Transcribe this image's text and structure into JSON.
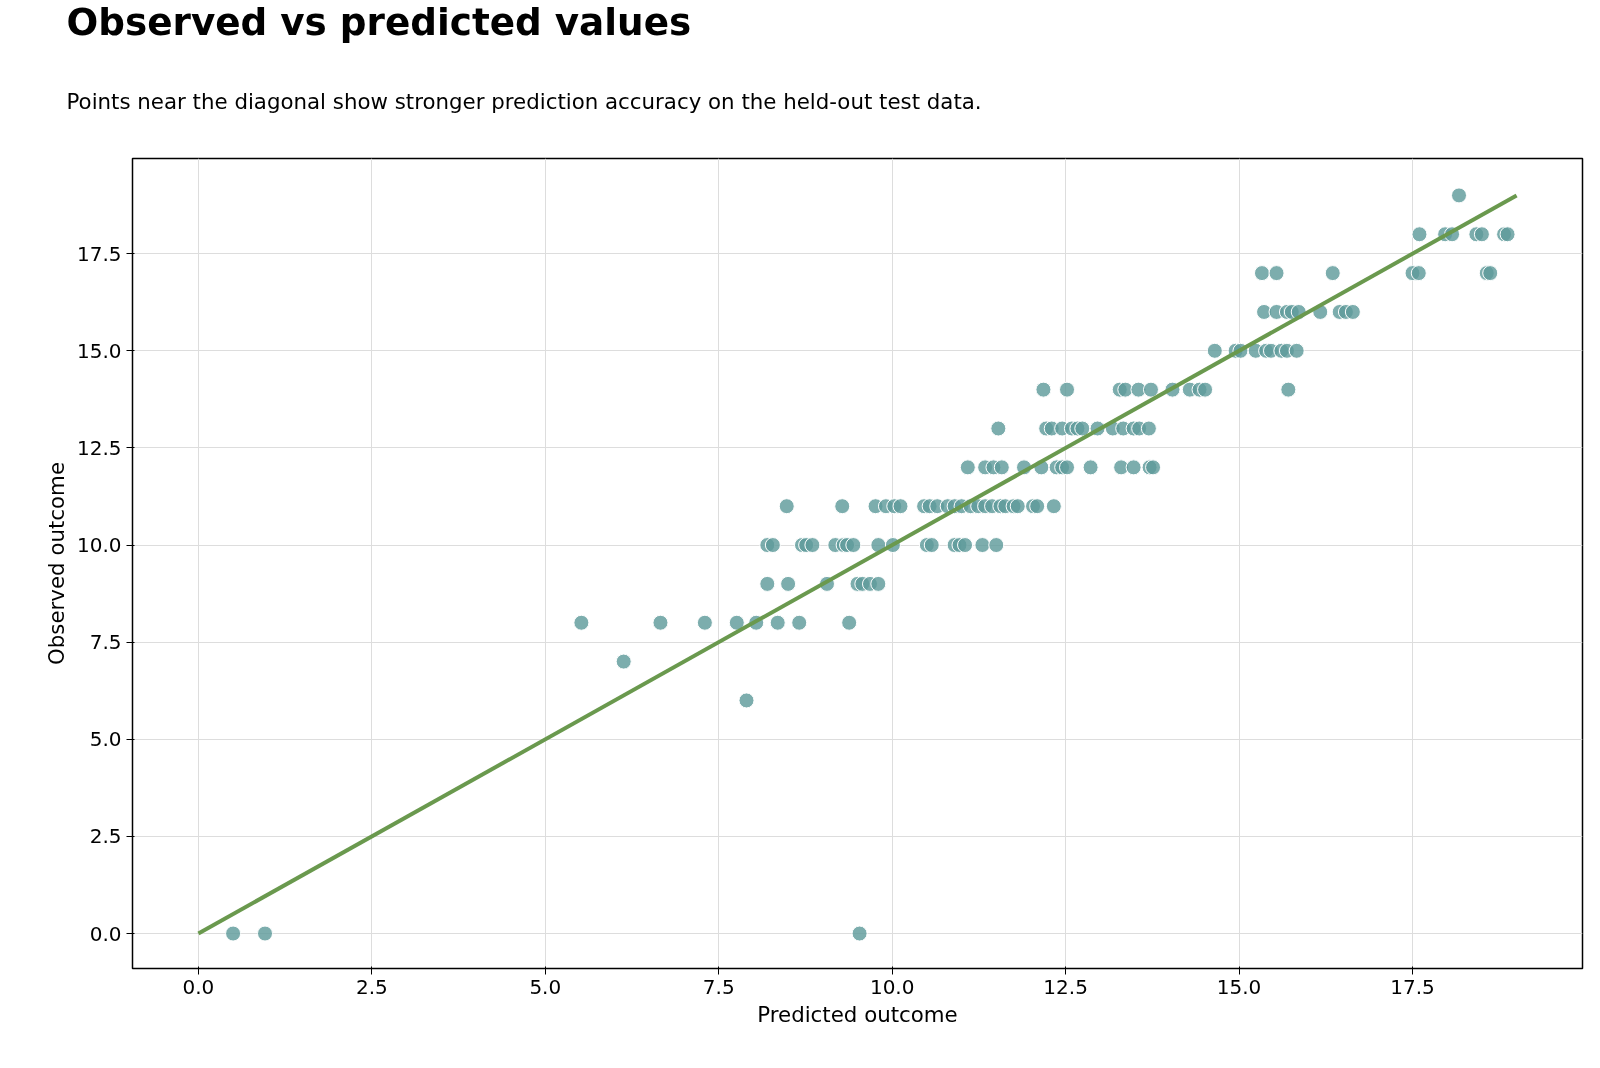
{
  "chart_data": {
    "type": "scatter",
    "title": "Observed vs predicted values",
    "subtitle": "Points near the diagonal show stronger prediction accuracy on the held-out test data.",
    "xlabel": "Predicted outcome",
    "ylabel": "Observed outcome",
    "xlim": [
      -0.95,
      19.95
    ],
    "ylim": [
      -0.9,
      19.95
    ],
    "xticks": [
      {
        "value": 0,
        "label": "0.0"
      },
      {
        "value": 2.5,
        "label": "2.5"
      },
      {
        "value": 5,
        "label": "5.0"
      },
      {
        "value": 7.5,
        "label": "7.5"
      },
      {
        "value": 10,
        "label": "10.0"
      },
      {
        "value": 12.5,
        "label": "12.5"
      },
      {
        "value": 15,
        "label": "15.0"
      },
      {
        "value": 17.5,
        "label": "17.5"
      }
    ],
    "yticks": [
      {
        "value": 0,
        "label": "0.0"
      },
      {
        "value": 2.5,
        "label": "2.5"
      },
      {
        "value": 5,
        "label": "5.0"
      },
      {
        "value": 7.5,
        "label": "7.5"
      },
      {
        "value": 10,
        "label": "10.0"
      },
      {
        "value": 12.5,
        "label": "12.5"
      },
      {
        "value": 15,
        "label": "15.0"
      },
      {
        "value": 17.5,
        "label": "17.5"
      }
    ],
    "grid": true,
    "marker": "circle",
    "series": [
      {
        "color": "#5f9b9b",
        "x": [
          0.5,
          0.96,
          9.53,
          7.9,
          6.13,
          5.52,
          6.66,
          7.3,
          7.76,
          8.04,
          8.35,
          8.66,
          9.38,
          8.2,
          8.5,
          9.06,
          9.5,
          9.57,
          9.68,
          9.8,
          8.2,
          8.28,
          8.7,
          8.76,
          8.85,
          9.18,
          9.3,
          9.35,
          9.44,
          9.8,
          10.01,
          10.5,
          10.57,
          10.9,
          10.97,
          11.05,
          11.3,
          11.5,
          8.48,
          9.28,
          9.76,
          9.91,
          10.03,
          10.12,
          10.46,
          10.54,
          10.65,
          10.8,
          10.9,
          11.0,
          11.13,
          11.24,
          11.34,
          11.44,
          11.56,
          11.63,
          11.75,
          11.81,
          12.03,
          12.09,
          12.33,
          11.09,
          11.34,
          11.46,
          11.58,
          11.9,
          12.15,
          12.37,
          12.45,
          12.52,
          12.86,
          13.3,
          13.48,
          13.71,
          13.76,
          11.53,
          12.22,
          12.3,
          12.45,
          12.59,
          12.67,
          12.74,
          12.96,
          13.18,
          13.33,
          13.48,
          13.56,
          13.7,
          12.18,
          12.52,
          13.28,
          13.36,
          13.55,
          13.73,
          14.04,
          14.29,
          14.43,
          14.51,
          15.71,
          14.65,
          14.95,
          15.02,
          15.24,
          15.39,
          15.46,
          15.61,
          15.69,
          15.83,
          15.36,
          15.54,
          15.69,
          15.76,
          15.86,
          16.17,
          16.45,
          16.54,
          16.64,
          15.33,
          15.54,
          16.35,
          17.5,
          17.59,
          18.57,
          18.62,
          17.6,
          17.97,
          18.07,
          18.42,
          18.5,
          18.82,
          18.87,
          18.17
        ],
        "values": [
          0,
          0,
          0,
          6,
          7,
          8,
          8,
          8,
          8,
          8,
          8,
          8,
          8,
          9,
          9,
          9,
          9,
          9,
          9,
          9,
          10,
          10,
          10,
          10,
          10,
          10,
          10,
          10,
          10,
          10,
          10,
          10,
          10,
          10,
          10,
          10,
          10,
          10,
          11,
          11,
          11,
          11,
          11,
          11,
          11,
          11,
          11,
          11,
          11,
          11,
          11,
          11,
          11,
          11,
          11,
          11,
          11,
          11,
          11,
          11,
          11,
          12,
          12,
          12,
          12,
          12,
          12,
          12,
          12,
          12,
          12,
          12,
          12,
          12,
          12,
          13,
          13,
          13,
          13,
          13,
          13,
          13,
          13,
          13,
          13,
          13,
          13,
          13,
          14,
          14,
          14,
          14,
          14,
          14,
          14,
          14,
          14,
          14,
          14,
          15,
          15,
          15,
          15,
          15,
          15,
          15,
          15,
          15,
          16,
          16,
          16,
          16,
          16,
          16,
          16,
          16,
          16,
          17,
          17,
          17,
          17,
          17,
          17,
          17,
          18,
          18,
          18,
          18,
          18,
          18,
          18,
          19
        ]
      },
      {
        "type": "line",
        "color": "#6a994e",
        "x": [
          0,
          19
        ],
        "values": [
          0,
          19
        ],
        "marker": "none",
        "line_style": "solid"
      }
    ]
  }
}
